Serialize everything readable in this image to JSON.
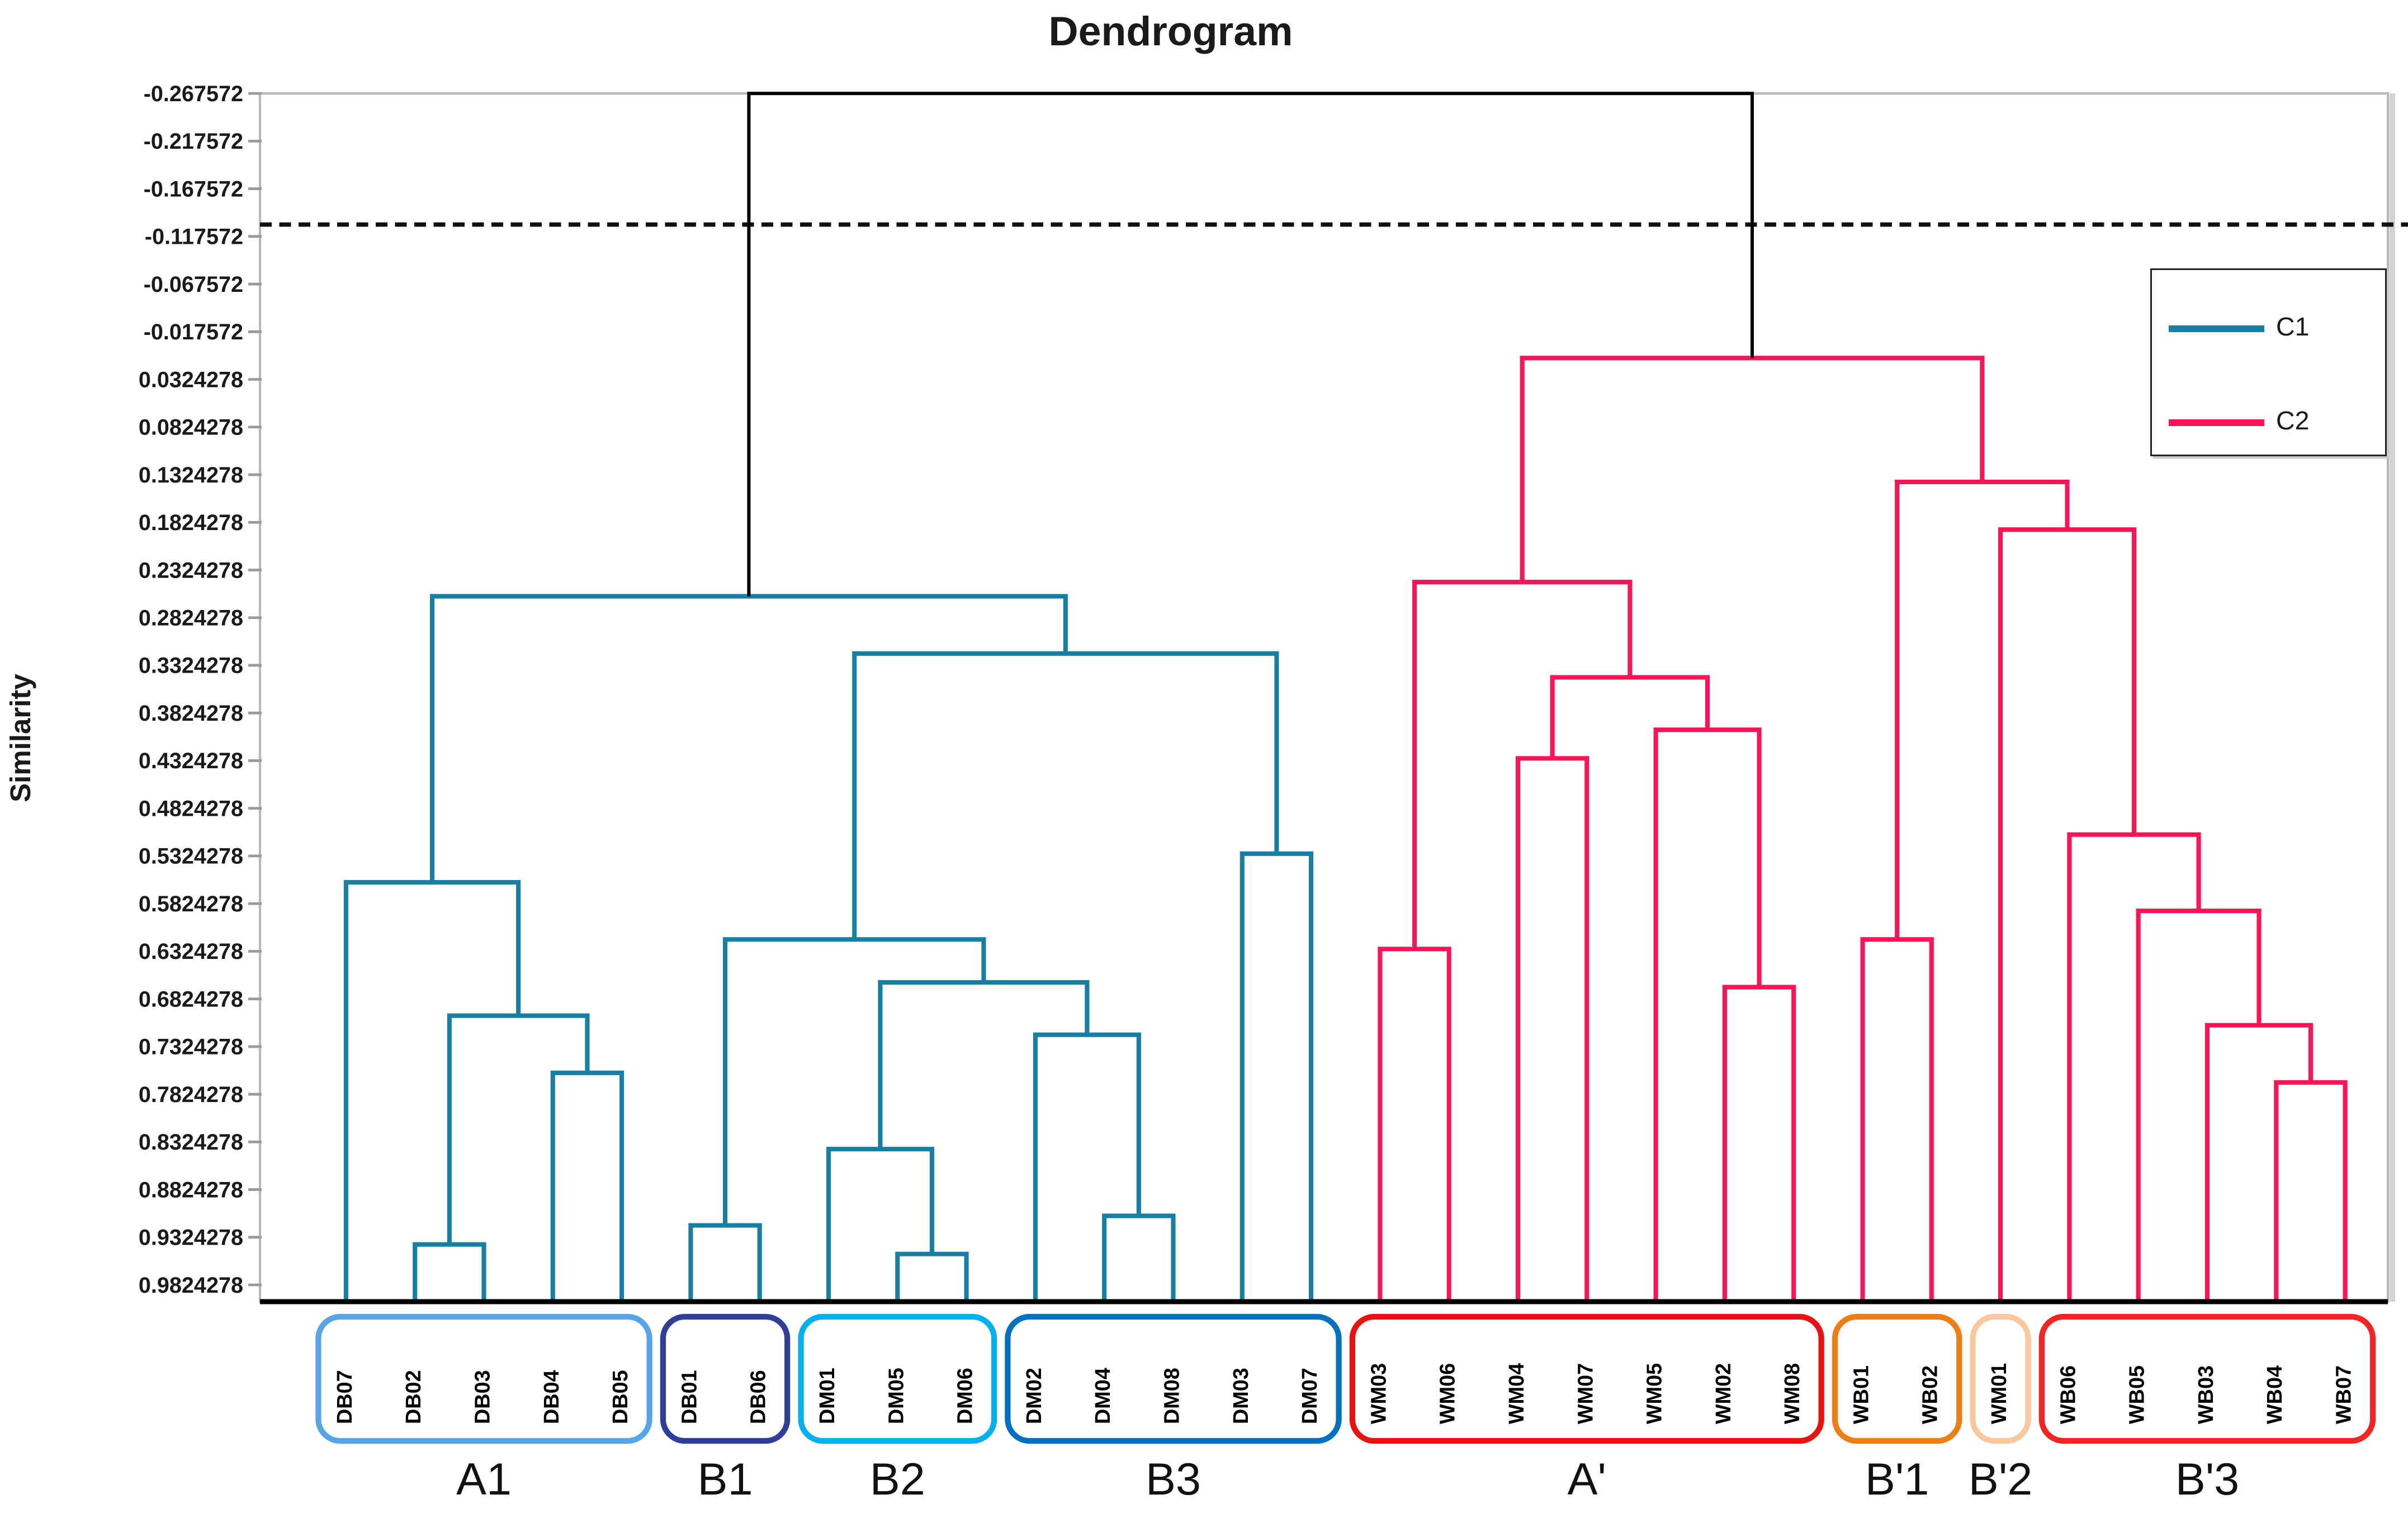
{
  "figure": {
    "title": "Dendrogram",
    "y_axis_label": "Similarity"
  },
  "legend": {
    "items": [
      {
        "label": "C1",
        "color_key": "c1"
      },
      {
        "label": "C2",
        "color_key": "c2"
      }
    ]
  },
  "colors": {
    "c1": "#177fa3",
    "c2": "#fb1456",
    "root": "#000000",
    "frame": "#b8b8b8",
    "tick": "#9a9a9a",
    "axis_text": "#1a1a1a",
    "baseline": "#000000",
    "threshold": "#111111"
  },
  "chart_data": {
    "type": "dendrogram",
    "title": "Dendrogram",
    "ylabel": "Similarity",
    "y_axis_range": [
      -0.267572,
      1.0
    ],
    "y_ticks": [
      "-0.267572",
      "-0.217572",
      "-0.167572",
      "-0.117572",
      "-0.067572",
      "-0.017572",
      "0.0324278",
      "0.0824278",
      "0.1324278",
      "0.1824278",
      "0.2324278",
      "0.2824278",
      "0.3324278",
      "0.3824278",
      "0.4324278",
      "0.4824278",
      "0.5324278",
      "0.5824278",
      "0.6324278",
      "0.6824278",
      "0.7324278",
      "0.7824278",
      "0.8324278",
      "0.8824278",
      "0.9324278",
      "0.9824278"
    ],
    "threshold_line": -0.13,
    "legend_position": "upper right",
    "grid": false,
    "leaves": [
      "DB07",
      "DB02",
      "DB03",
      "DB04",
      "DB05",
      "DB01",
      "DB06",
      "DM01",
      "DM05",
      "DM06",
      "DM02",
      "DM04",
      "DM08",
      "DM03",
      "DM07",
      "WM03",
      "WM06",
      "WM04",
      "WM07",
      "WM05",
      "WM02",
      "WM08",
      "WB01",
      "WB02",
      "WM01",
      "WB06",
      "WB05",
      "WB03",
      "WB04",
      "WB07"
    ],
    "clusters": [
      {
        "name": "C1",
        "color_key": "c1"
      },
      {
        "name": "C2",
        "color_key": "c2"
      }
    ],
    "merges": [
      {
        "id": "m1",
        "a": "DB02",
        "b": "DB03",
        "h": 0.94,
        "cluster": "c1"
      },
      {
        "id": "m2",
        "a": "DB04",
        "b": "DB05",
        "h": 0.76,
        "cluster": "c1"
      },
      {
        "id": "m3",
        "a": "m1",
        "b": "m2",
        "h": 0.7,
        "cluster": "c1"
      },
      {
        "id": "m4",
        "a": "DB07",
        "b": "m3",
        "h": 0.56,
        "cluster": "c1"
      },
      {
        "id": "m5",
        "a": "DB01",
        "b": "DB06",
        "h": 0.92,
        "cluster": "c1"
      },
      {
        "id": "m6",
        "a": "DM05",
        "b": "DM06",
        "h": 0.95,
        "cluster": "c1"
      },
      {
        "id": "m7",
        "a": "DM01",
        "b": "m6",
        "h": 0.84,
        "cluster": "c1"
      },
      {
        "id": "m8",
        "a": "DM04",
        "b": "DM08",
        "h": 0.91,
        "cluster": "c1"
      },
      {
        "id": "m9",
        "a": "DM02",
        "b": "m8",
        "h": 0.72,
        "cluster": "c1"
      },
      {
        "id": "m10",
        "a": "m7",
        "b": "m9",
        "h": 0.665,
        "cluster": "c1"
      },
      {
        "id": "m11",
        "a": "m5",
        "b": "m10",
        "h": 0.62,
        "cluster": "c1"
      },
      {
        "id": "m12",
        "a": "DM03",
        "b": "DM07",
        "h": 0.53,
        "cluster": "c1"
      },
      {
        "id": "m13",
        "a": "m11",
        "b": "m12",
        "h": 0.32,
        "cluster": "c1"
      },
      {
        "id": "m14",
        "a": "m4",
        "b": "m13",
        "h": 0.26,
        "cluster": "c1"
      },
      {
        "id": "m15",
        "a": "WM03",
        "b": "WM06",
        "h": 0.63,
        "cluster": "c2"
      },
      {
        "id": "m16",
        "a": "WM04",
        "b": "WM07",
        "h": 0.43,
        "cluster": "c2"
      },
      {
        "id": "m17",
        "a": "WM02",
        "b": "WM08",
        "h": 0.67,
        "cluster": "c2"
      },
      {
        "id": "m18",
        "a": "WM05",
        "b": "m17",
        "h": 0.4,
        "cluster": "c2"
      },
      {
        "id": "m19",
        "a": "m16",
        "b": "m18",
        "h": 0.345,
        "cluster": "c2"
      },
      {
        "id": "m20",
        "a": "m15",
        "b": "m19",
        "h": 0.245,
        "cluster": "c2"
      },
      {
        "id": "m21",
        "a": "WB01",
        "b": "WB02",
        "h": 0.62,
        "cluster": "c2"
      },
      {
        "id": "m22",
        "a": "WB04",
        "b": "WB07",
        "h": 0.77,
        "cluster": "c2"
      },
      {
        "id": "m23",
        "a": "WB03",
        "b": "m22",
        "h": 0.71,
        "cluster": "c2"
      },
      {
        "id": "m24",
        "a": "WB05",
        "b": "m23",
        "h": 0.59,
        "cluster": "c2"
      },
      {
        "id": "m25",
        "a": "WB06",
        "b": "m24",
        "h": 0.51,
        "cluster": "c2"
      },
      {
        "id": "m26",
        "a": "WM01",
        "b": "m25",
        "h": 0.19,
        "cluster": "c2"
      },
      {
        "id": "m27",
        "a": "m21",
        "b": "m26",
        "h": 0.14,
        "cluster": "c2"
      },
      {
        "id": "m28",
        "a": "m20",
        "b": "m27",
        "h": 0.01,
        "cluster": "c2"
      },
      {
        "id": "m29",
        "a": "m14",
        "b": "m28",
        "h": -0.267572,
        "cluster": "root"
      }
    ],
    "groups": [
      {
        "label": "A1",
        "color": "#55a5e8",
        "from": 0,
        "to": 4,
        "members": [
          "DB07",
          "DB02",
          "DB03",
          "DB04",
          "DB05"
        ]
      },
      {
        "label": "B1",
        "color": "#2e3e9b",
        "from": 5,
        "to": 6,
        "members": [
          "DB01",
          "DB06"
        ]
      },
      {
        "label": "B2",
        "color": "#00b0f0",
        "from": 7,
        "to": 9,
        "members": [
          "DM01",
          "DM05",
          "DM06"
        ]
      },
      {
        "label": "B3",
        "color": "#0070c0",
        "from": 10,
        "to": 14,
        "members": [
          "DM02",
          "DM04",
          "DM08",
          "DM03",
          "DM07"
        ]
      },
      {
        "label": "A'",
        "color": "#e81212",
        "from": 15,
        "to": 21,
        "members": [
          "WM03",
          "WM06",
          "WM04",
          "WM07",
          "WM05",
          "WM02",
          "WM08"
        ]
      },
      {
        "label": "B'1",
        "color": "#f07d14",
        "from": 22,
        "to": 23,
        "members": [
          "WB01",
          "WB02"
        ]
      },
      {
        "label": "B'2",
        "color": "#fbc79c",
        "from": 24,
        "to": 24,
        "members": [
          "WM01"
        ]
      },
      {
        "label": "B'3",
        "color": "#f32424",
        "from": 25,
        "to": 29,
        "members": [
          "WB06",
          "WB05",
          "WB03",
          "WB04",
          "WB07"
        ]
      }
    ]
  }
}
